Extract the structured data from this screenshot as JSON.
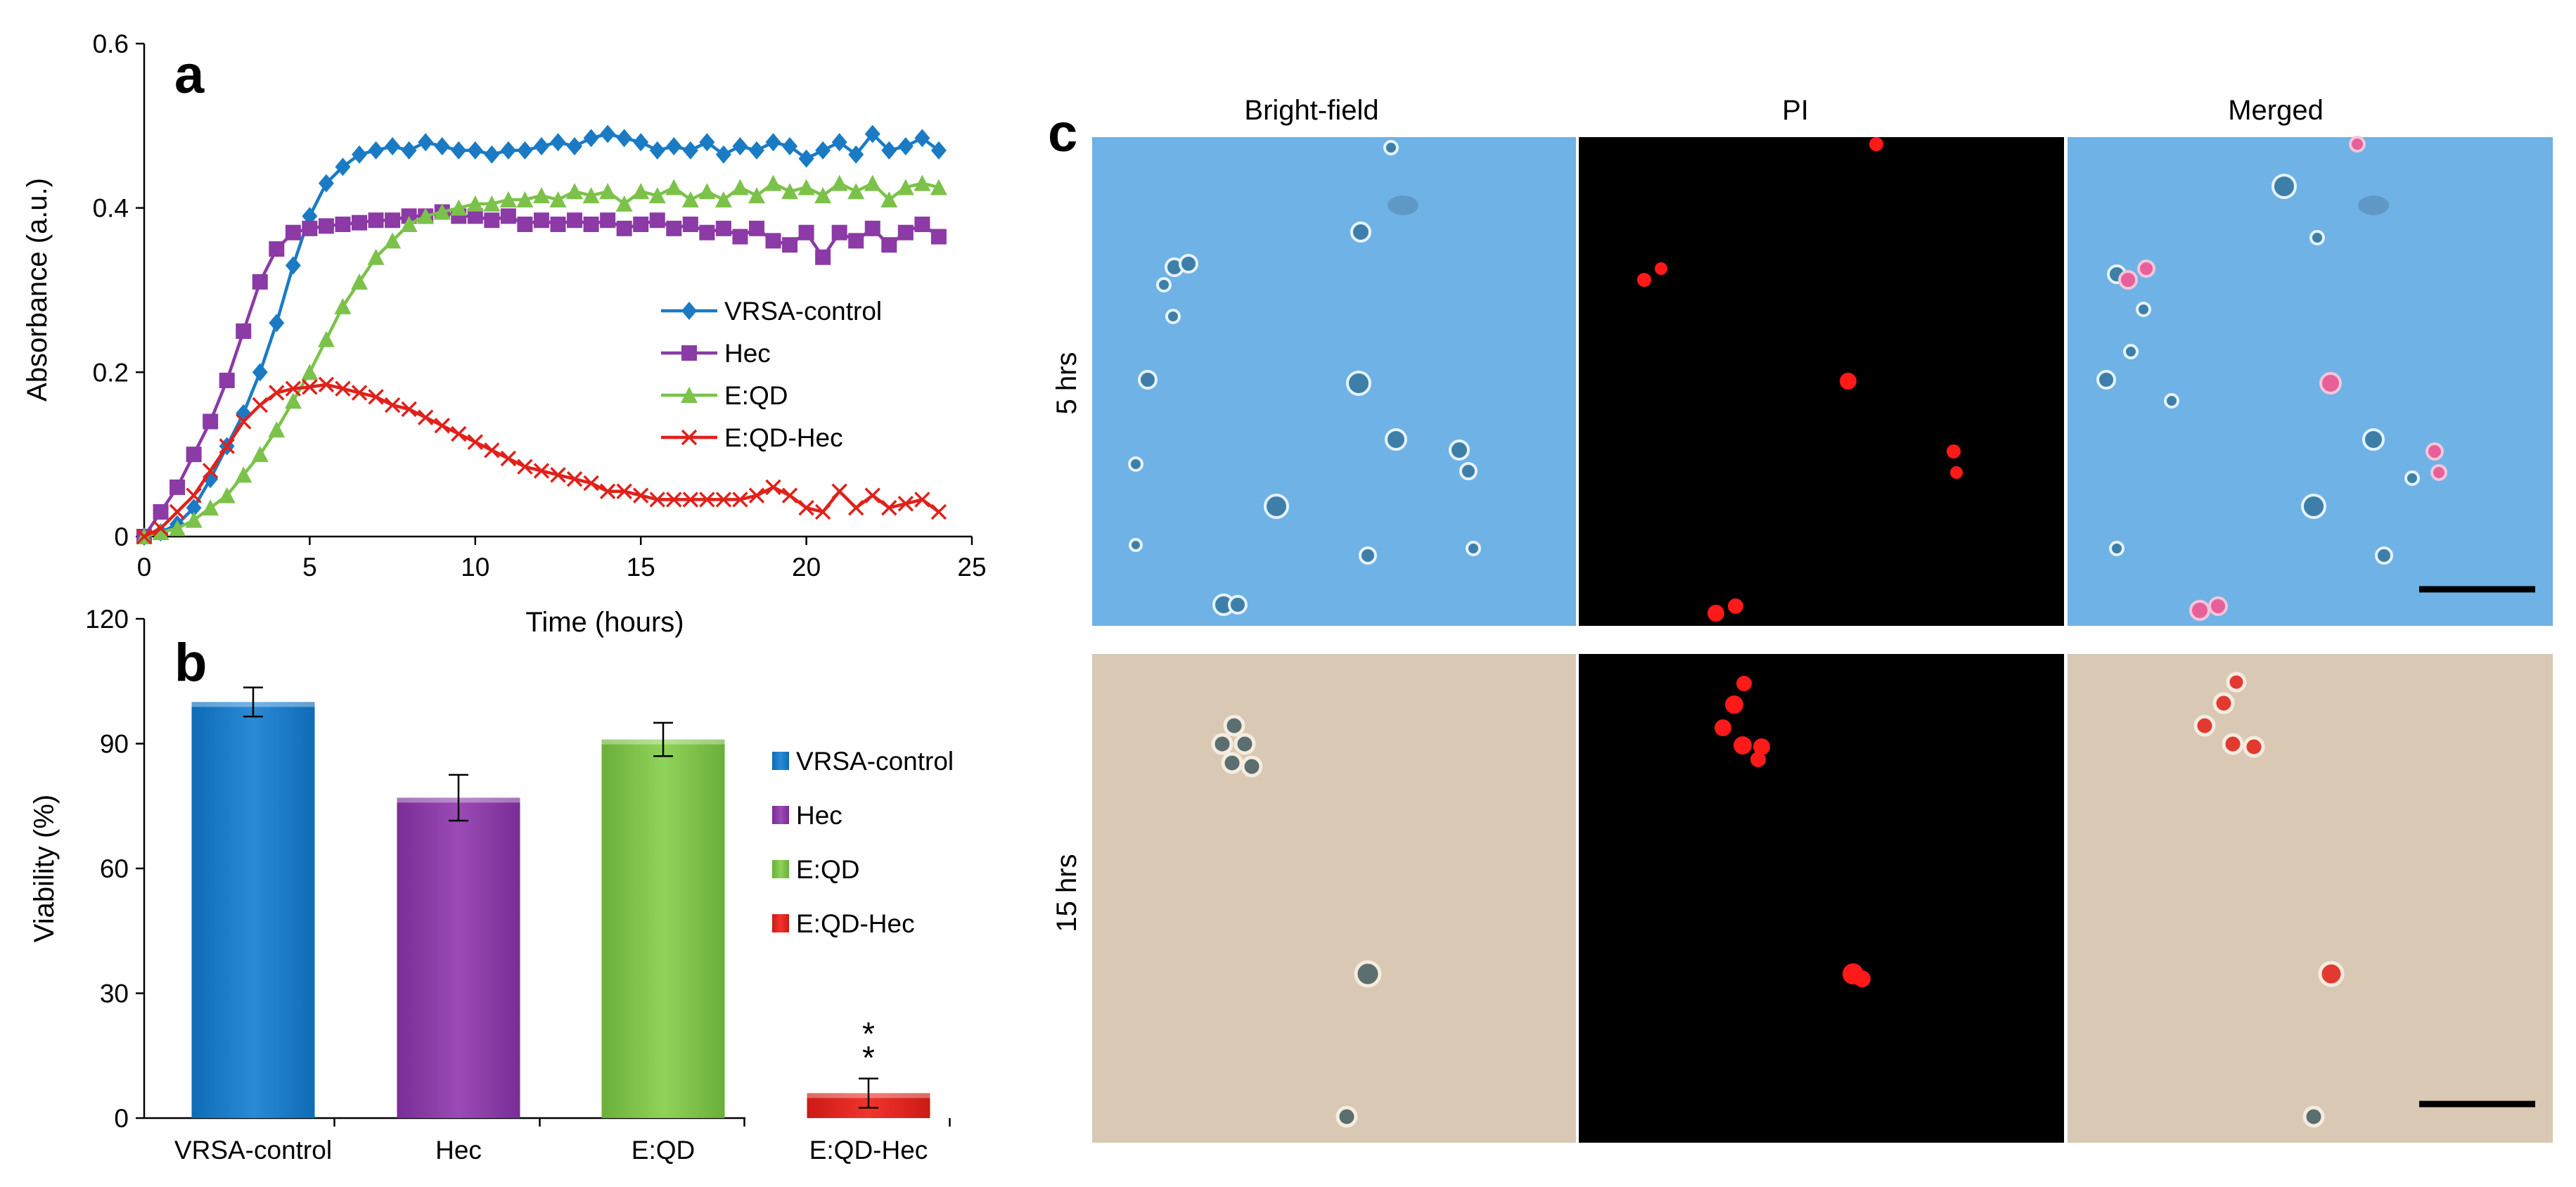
{
  "colors": {
    "vrsa": "#1a7bc4",
    "hec": "#8b3aa6",
    "eqd": "#7cc24a",
    "eqdhec": "#e0211b",
    "bf_row1": "#6fb2e6",
    "bf_row2": "#d9c8b3"
  },
  "panel_labels": {
    "a": "a",
    "b": "b",
    "c": "c"
  },
  "chart_data": [
    {
      "type": "line",
      "panel": "a",
      "xlabel": "Time (hours)",
      "ylabel": "Absorbance (a.u.)",
      "xlim": [
        0,
        25
      ],
      "ylim": [
        0,
        0.6
      ],
      "xticks": [
        "0",
        "5",
        "10",
        "15",
        "20",
        "25"
      ],
      "yticks": [
        "0",
        "0.2",
        "0.4",
        "0.6"
      ],
      "grid": false,
      "legend_position": "center-right",
      "series": [
        {
          "name": "VRSA-control",
          "marker": "diamond",
          "color": "#1a7bc4",
          "x": [
            0,
            0.5,
            1,
            1.5,
            2,
            2.5,
            3,
            3.5,
            4,
            4.5,
            5,
            5.5,
            6,
            6.5,
            7,
            7.5,
            8,
            8.5,
            9,
            9.5,
            10,
            10.5,
            11,
            11.5,
            12,
            12.5,
            13,
            13.5,
            14,
            14.5,
            15,
            15.5,
            16,
            16.5,
            17,
            17.5,
            18,
            18.5,
            19,
            19.5,
            20,
            20.5,
            21,
            21.5,
            22,
            22.5,
            23,
            23.5,
            24
          ],
          "y": [
            0,
            0.005,
            0.015,
            0.035,
            0.07,
            0.11,
            0.15,
            0.2,
            0.26,
            0.33,
            0.39,
            0.43,
            0.45,
            0.465,
            0.47,
            0.475,
            0.47,
            0.48,
            0.475,
            0.47,
            0.47,
            0.465,
            0.47,
            0.47,
            0.475,
            0.48,
            0.475,
            0.485,
            0.49,
            0.485,
            0.48,
            0.47,
            0.475,
            0.47,
            0.48,
            0.465,
            0.475,
            0.47,
            0.48,
            0.475,
            0.46,
            0.47,
            0.48,
            0.465,
            0.49,
            0.47,
            0.475,
            0.485,
            0.47
          ]
        },
        {
          "name": "Hec",
          "marker": "square",
          "color": "#8b3aa6",
          "x": [
            0,
            0.5,
            1,
            1.5,
            2,
            2.5,
            3,
            3.5,
            4,
            4.5,
            5,
            5.5,
            6,
            6.5,
            7,
            7.5,
            8,
            8.5,
            9,
            9.5,
            10,
            10.5,
            11,
            11.5,
            12,
            12.5,
            13,
            13.5,
            14,
            14.5,
            15,
            15.5,
            16,
            16.5,
            17,
            17.5,
            18,
            18.5,
            19,
            19.5,
            20,
            20.5,
            21,
            21.5,
            22,
            22.5,
            23,
            23.5,
            24
          ],
          "y": [
            0,
            0.03,
            0.06,
            0.1,
            0.14,
            0.19,
            0.25,
            0.31,
            0.35,
            0.37,
            0.375,
            0.378,
            0.38,
            0.382,
            0.385,
            0.385,
            0.39,
            0.39,
            0.395,
            0.39,
            0.39,
            0.385,
            0.39,
            0.38,
            0.385,
            0.38,
            0.385,
            0.38,
            0.385,
            0.375,
            0.38,
            0.385,
            0.375,
            0.38,
            0.37,
            0.375,
            0.365,
            0.375,
            0.36,
            0.355,
            0.37,
            0.34,
            0.37,
            0.36,
            0.375,
            0.355,
            0.37,
            0.38,
            0.365
          ]
        },
        {
          "name": "E:QD",
          "marker": "triangle",
          "color": "#7cc24a",
          "x": [
            0,
            0.5,
            1,
            1.5,
            2,
            2.5,
            3,
            3.5,
            4,
            4.5,
            5,
            5.5,
            6,
            6.5,
            7,
            7.5,
            8,
            8.5,
            9,
            9.5,
            10,
            10.5,
            11,
            11.5,
            12,
            12.5,
            13,
            13.5,
            14,
            14.5,
            15,
            15.5,
            16,
            16.5,
            17,
            17.5,
            18,
            18.5,
            19,
            19.5,
            20,
            20.5,
            21,
            21.5,
            22,
            22.5,
            23,
            23.5,
            24
          ],
          "y": [
            0,
            0.005,
            0.01,
            0.02,
            0.035,
            0.05,
            0.075,
            0.1,
            0.13,
            0.165,
            0.2,
            0.24,
            0.28,
            0.31,
            0.34,
            0.36,
            0.38,
            0.39,
            0.395,
            0.4,
            0.405,
            0.405,
            0.41,
            0.41,
            0.415,
            0.41,
            0.42,
            0.415,
            0.42,
            0.405,
            0.42,
            0.415,
            0.425,
            0.41,
            0.42,
            0.41,
            0.425,
            0.415,
            0.43,
            0.42,
            0.425,
            0.415,
            0.43,
            0.42,
            0.43,
            0.41,
            0.425,
            0.43,
            0.425
          ]
        },
        {
          "name": "E:QD-Hec",
          "marker": "x",
          "color": "#e0211b",
          "x": [
            0,
            0.5,
            1,
            1.5,
            2,
            2.5,
            3,
            3.5,
            4,
            4.5,
            5,
            5.5,
            6,
            6.5,
            7,
            7.5,
            8,
            8.5,
            9,
            9.5,
            10,
            10.5,
            11,
            11.5,
            12,
            12.5,
            13,
            13.5,
            14,
            14.5,
            15,
            15.5,
            16,
            16.5,
            17,
            17.5,
            18,
            18.5,
            19,
            19.5,
            20,
            20.5,
            21,
            21.5,
            22,
            22.5,
            23,
            23.5,
            24
          ],
          "y": [
            0,
            0.01,
            0.03,
            0.05,
            0.08,
            0.11,
            0.14,
            0.16,
            0.175,
            0.18,
            0.182,
            0.185,
            0.18,
            0.175,
            0.17,
            0.16,
            0.155,
            0.145,
            0.135,
            0.125,
            0.115,
            0.105,
            0.095,
            0.085,
            0.08,
            0.075,
            0.07,
            0.065,
            0.055,
            0.055,
            0.05,
            0.045,
            0.045,
            0.045,
            0.045,
            0.045,
            0.045,
            0.05,
            0.06,
            0.05,
            0.035,
            0.03,
            0.055,
            0.035,
            0.05,
            0.035,
            0.04,
            0.045,
            0.03
          ]
        }
      ]
    },
    {
      "type": "bar",
      "panel": "b",
      "xlabel": "",
      "ylabel": "Viability (%)",
      "ylim": [
        0,
        120
      ],
      "yticks": [
        "0",
        "30",
        "60",
        "90",
        "120"
      ],
      "grid": false,
      "legend_position": "right",
      "categories": [
        "VRSA-control",
        "Hec",
        "E:QD",
        "E:QD-Hec"
      ],
      "values": [
        100,
        77,
        91,
        6
      ],
      "errors": [
        3.5,
        5.5,
        4,
        3.5
      ],
      "colors": [
        "#1a7bc4",
        "#8b3aa6",
        "#7cc24a",
        "#e0211b"
      ],
      "annotations": [
        {
          "category": "E:QD-Hec",
          "text": "**"
        }
      ]
    }
  ],
  "panel_c": {
    "column_headers": [
      "Bright-field",
      "PI",
      "Merged"
    ],
    "row_labels": [
      "5 hrs",
      "15 hrs"
    ]
  }
}
